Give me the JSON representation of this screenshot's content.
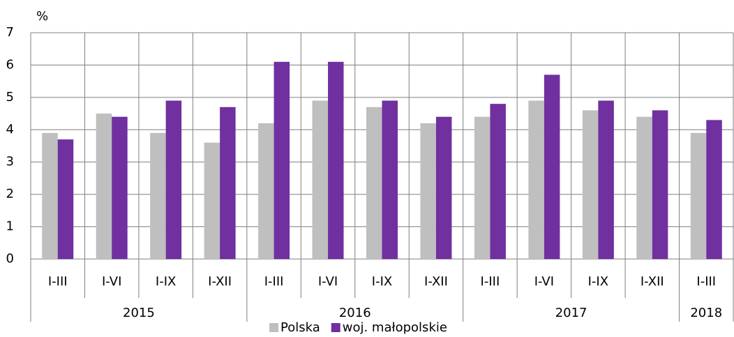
{
  "chart_data": {
    "type": "bar",
    "unit_label": "%",
    "categories": [
      "I-III",
      "I-VI",
      "I-IX",
      "I-XII",
      "I-III",
      "I-VI",
      "I-IX",
      "I-XII",
      "I-III",
      "I-VI",
      "I-IX",
      "I-XII",
      "I-III"
    ],
    "groups": [
      {
        "label": "2015",
        "count": 4
      },
      {
        "label": "2016",
        "count": 4
      },
      {
        "label": "2017",
        "count": 4
      },
      {
        "label": "2018",
        "count": 1
      }
    ],
    "series": [
      {
        "name": "Polska",
        "color": "#bfbfbf",
        "values": [
          3.9,
          4.5,
          3.9,
          3.6,
          4.2,
          4.9,
          4.7,
          4.2,
          4.4,
          4.9,
          4.6,
          4.4,
          3.9
        ]
      },
      {
        "name": "woj. małopolskie",
        "color": "#7030a0",
        "values": [
          3.7,
          4.4,
          4.9,
          4.7,
          6.1,
          6.1,
          4.9,
          4.4,
          4.8,
          5.7,
          4.9,
          4.6,
          4.3
        ]
      }
    ],
    "ylim": [
      0,
      7
    ],
    "yticks": [
      0,
      1,
      2,
      3,
      4,
      5,
      6,
      7
    ],
    "grid": true
  }
}
